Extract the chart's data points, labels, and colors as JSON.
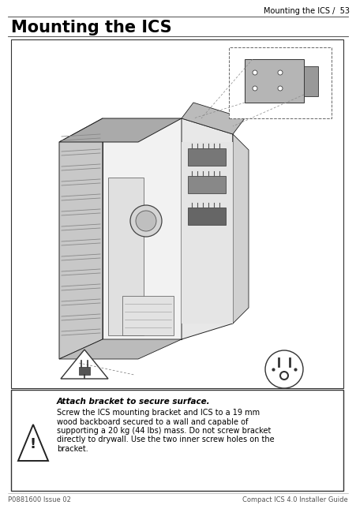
{
  "page_title": "Mounting the ICS",
  "header_right": "Mounting the ICS /  53",
  "footer_left": "P0881600 Issue 02",
  "footer_right": "Compact ICS 4.0 Installer Guide",
  "warning_title": "Attach bracket to secure surface.",
  "warning_body_lines": [
    "Screw the ICS mounting bracket and ICS to a 19 mm",
    "wood backboard secured to a wall and capable of",
    "supporting a 20 kg (44 lbs) mass. Do not screw bracket",
    "directly to drywall. Use the two inner screw holes on the",
    "bracket."
  ],
  "bg_color": "#ffffff",
  "border_color": "#000000",
  "text_color": "#000000"
}
